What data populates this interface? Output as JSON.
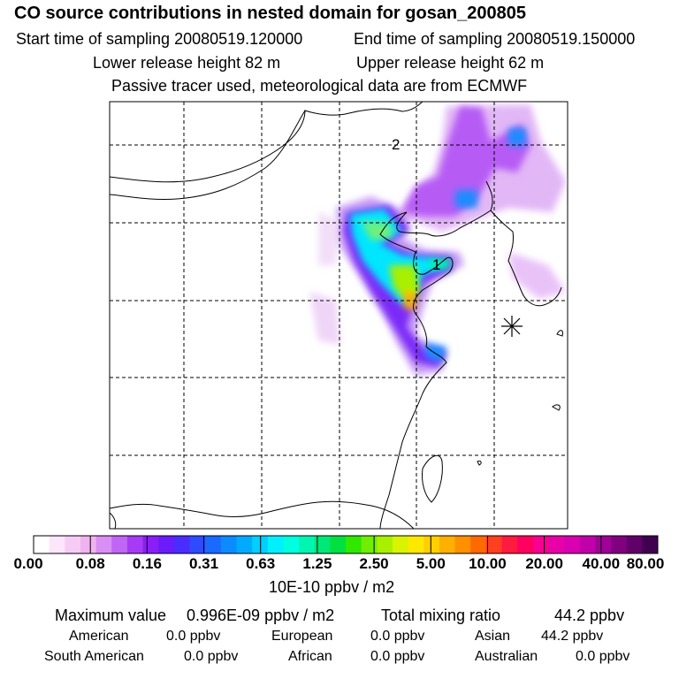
{
  "header": {
    "title": "CO  source contributions in nested domain for gosan_200805",
    "start_label": "Start time of sampling 20080519.120000",
    "end_label": "End time of sampling 20080519.150000",
    "lower_release": "Lower release height   82 m",
    "upper_release": "Upper release height   62 m",
    "note": "Passive tracer used, meteorological data are from ECMWF"
  },
  "map": {
    "labels": [
      "2",
      "1"
    ],
    "receptor_marker": "asterisk-receptor-icon"
  },
  "colorbar": {
    "colors": [
      "#ffffff",
      "#fbe6fb",
      "#f6ccf6",
      "#f0b3f0",
      "#d98ef5",
      "#c066f5",
      "#a73af5",
      "#8a1ef7",
      "#6a1cfa",
      "#4b2cff",
      "#2f4bff",
      "#1a6aff",
      "#0c8bff",
      "#00aaff",
      "#00cfff",
      "#00f0ff",
      "#00ffe0",
      "#00f5b0",
      "#00e878",
      "#00e040",
      "#30e800",
      "#70ee00",
      "#a8f000",
      "#d8f400",
      "#ffe800",
      "#ffd000",
      "#ffb000",
      "#ff9000",
      "#ff6a00",
      "#ff4020",
      "#ff1a40",
      "#ff0060",
      "#f80090",
      "#e800a8",
      "#d800b0",
      "#c000a8",
      "#a00098",
      "#800080",
      "#600068",
      "#400050"
    ],
    "ticks": [
      "0.00",
      "0.08",
      "0.16",
      "0.31",
      "0.63",
      "1.25",
      "2.50",
      "5.00",
      "10.00",
      "20.00",
      "40.00",
      "80.00"
    ],
    "units": "10E-10 ppbv / m2"
  },
  "stats": {
    "max_label": "Maximum value",
    "max_value": "0.996E-09 ppbv / m2",
    "total_label": "Total mixing ratio",
    "total_value": "44.2 ppbv",
    "regions": [
      {
        "name": "American",
        "value": "0.0 ppbv"
      },
      {
        "name": "European",
        "value": "0.0 ppbv"
      },
      {
        "name": "Asian",
        "value": "44.2 ppbv"
      },
      {
        "name": "South American",
        "value": "0.0 ppbv"
      },
      {
        "name": "African",
        "value": "0.0 ppbv"
      },
      {
        "name": "Australian",
        "value": "0.0 ppbv"
      }
    ]
  }
}
